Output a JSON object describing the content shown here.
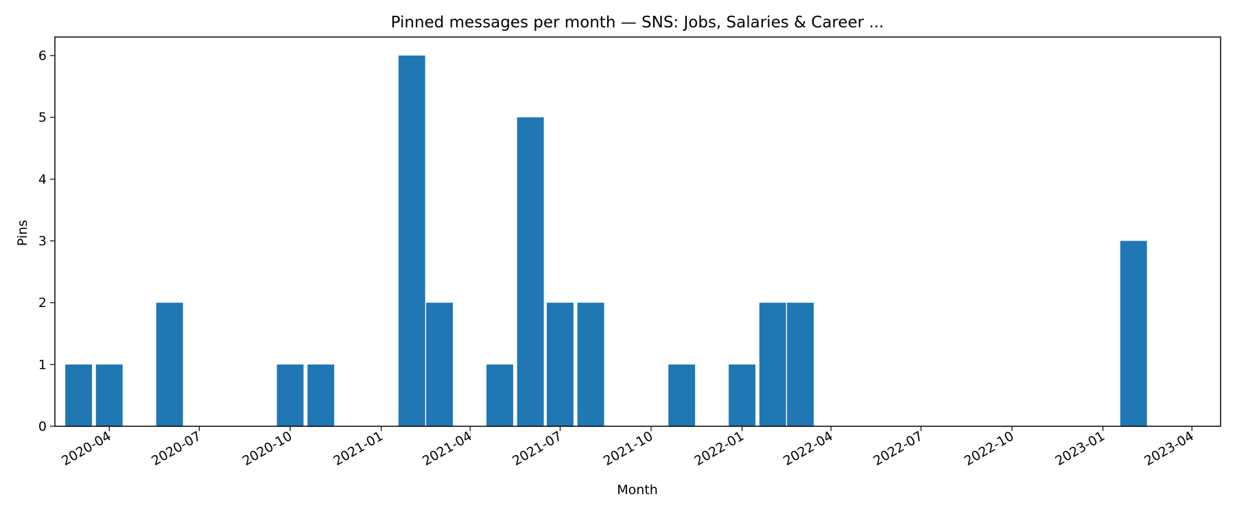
{
  "chart_data": {
    "type": "bar",
    "title": "Pinned messages per month — SNS: Jobs, Salaries & Career ...",
    "xlabel": "Month",
    "ylabel": "Pins",
    "bar_color": "#1f77b4",
    "grid": false,
    "legend": "none",
    "x_scale": "time",
    "xlim": [
      "2020-02-06",
      "2023-04-30"
    ],
    "ylim": [
      0,
      6.3
    ],
    "y_ticks": [
      0,
      1,
      2,
      3,
      4,
      5,
      6
    ],
    "x_ticks": [
      "2020-04",
      "2020-07",
      "2020-10",
      "2021-01",
      "2021-04",
      "2021-07",
      "2021-10",
      "2022-01",
      "2022-04",
      "2022-07",
      "2022-10",
      "2023-01",
      "2023-04"
    ],
    "categories": [
      "2020-03",
      "2020-04",
      "2020-06",
      "2020-10",
      "2020-11",
      "2021-02",
      "2021-03",
      "2021-05",
      "2021-06",
      "2021-07",
      "2021-08",
      "2021-11",
      "2022-01",
      "2022-02",
      "2022-03",
      "2023-02"
    ],
    "values": [
      1,
      1,
      2,
      1,
      1,
      6,
      2,
      1,
      5,
      2,
      2,
      1,
      1,
      2,
      2,
      3
    ]
  }
}
